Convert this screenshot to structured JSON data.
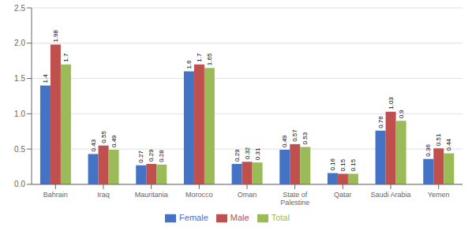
{
  "chart_data": {
    "type": "bar",
    "categories": [
      "Bahrain",
      "Iraq",
      "Mauritania",
      "Morocco",
      "Oman",
      "State of\nPalestine",
      "Qatar",
      "Saudi Arabia",
      "Yemen"
    ],
    "series": [
      {
        "name": "Female",
        "color": "#4472c4",
        "values": [
          1.4,
          0.43,
          0.27,
          1.6,
          0.29,
          0.49,
          0.16,
          0.76,
          0.36
        ]
      },
      {
        "name": "Male",
        "color": "#c0504d",
        "values": [
          1.98,
          0.55,
          0.29,
          1.7,
          0.32,
          0.57,
          0.15,
          1.03,
          0.51
        ]
      },
      {
        "name": "Total",
        "color": "#9bbb59",
        "values": [
          1.7,
          0.49,
          0.28,
          1.65,
          0.31,
          0.53,
          0.15,
          0.9,
          0.44
        ]
      }
    ],
    "ylim": [
      0,
      2.5
    ],
    "yticks": [
      {
        "value": 0,
        "label": "0.0"
      },
      0.5,
      {
        "value": 1,
        "label": "1.0"
      },
      1.5,
      {
        "value": 2,
        "label": "2.0"
      },
      2.5
    ],
    "grid": true,
    "legend": "bottom",
    "data_labels": true
  }
}
